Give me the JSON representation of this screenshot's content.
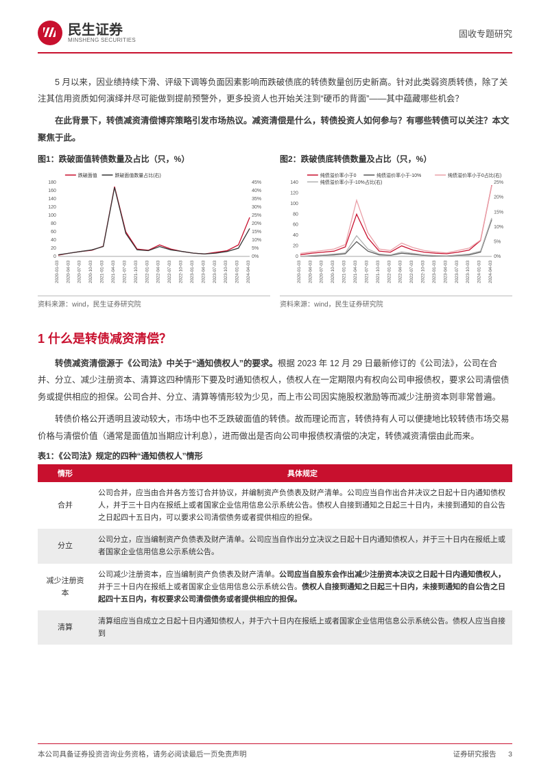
{
  "header": {
    "logo_cn": "民生证券",
    "logo_en": "MINSHENG SECURITIES",
    "doc_type": "固收专题研究"
  },
  "paras": {
    "p1": "5 月以来，因业绩持续下滑、评级下调等负面因素影响而跌破债底的转债数量创历史新高。针对此类弱资质转债，除了关注其信用资质如何演绎并尽可能做到提前预警外，更多投资人也开始关注到“硬币的背面”——其中蕴藏哪些机会？",
    "p2_bold": "在此背景下，转债减资清偿博弈策略引发市场热议。减资清偿是什么，转债投资人如何参与？有哪些转债可以关注？本文聚焦于此。"
  },
  "fig1": {
    "title": "图1：跌破面值转债数量及占比（只，%）",
    "source": "资料来源：wind，民生证券研究院",
    "legend": [
      "跌破面值",
      "跌破面值数量占比(右)"
    ],
    "legend_colors": [
      "#c8102e",
      "#333333"
    ],
    "x_labels": [
      "2020-01-03",
      "2020-04-03",
      "2020-07-03",
      "2020-10-03",
      "2021-01-03",
      "2021-04-03",
      "2021-07-03",
      "2021-10-03",
      "2022-01-03",
      "2022-04-03",
      "2022-07-03",
      "2022-10-03",
      "2023-01-03",
      "2023-04-03",
      "2023-07-03",
      "2023-10-03",
      "2024-01-03",
      "2024-04-03"
    ],
    "y_left": {
      "min": 0,
      "max": 180,
      "step": 20
    },
    "y_right": {
      "min": 0,
      "max": 45,
      "step": 5,
      "suffix": "%"
    },
    "series_left": {
      "color": "#c8102e",
      "width": 1.3,
      "values": [
        3,
        8,
        12,
        15,
        25,
        170,
        60,
        18,
        15,
        28,
        18,
        12,
        8,
        6,
        10,
        14,
        28,
        95
      ]
    },
    "series_right": {
      "color": "#333333",
      "width": 1.3,
      "values": [
        1,
        2,
        3,
        4,
        6,
        42,
        14,
        4,
        3.5,
        6,
        4,
        3,
        2,
        1.5,
        2,
        3,
        5,
        17
      ]
    },
    "bg": "#ffffff",
    "grid": "#dddddd",
    "tick_fontsize": 7
  },
  "fig2": {
    "title": "图2：跌破债底转债数量及占比（只，%）",
    "source": "资料来源：wind，民生证券研究院",
    "legend": [
      "纯债溢价率小于0",
      "纯债溢价率小于-10%",
      "纯债溢价率小于0占比(右)",
      "纯债溢价率小于-10%占比(右)"
    ],
    "legend_colors": [
      "#c8102e",
      "#555555",
      "#eaa0a8",
      "#b0b0b0"
    ],
    "x_labels": [
      "2020-01-03",
      "2020-04-03",
      "2020-07-03",
      "2020-10-03",
      "2021-01-03",
      "2021-04-03",
      "2021-07-03",
      "2021-10-03",
      "2022-01-03",
      "2022-04-03",
      "2022-07-03",
      "2022-10-03",
      "2023-01-03",
      "2023-04-03",
      "2023-07-03",
      "2023-10-03",
      "2024-01-03",
      "2024-04-03"
    ],
    "y_left": {
      "min": 0,
      "max": 140,
      "step": 20
    },
    "y_right": {
      "min": 0,
      "max": 25,
      "step": 5,
      "suffix": "%"
    },
    "series": [
      {
        "color": "#c8102e",
        "width": 1.3,
        "values": [
          3,
          6,
          8,
          10,
          18,
          80,
          35,
          10,
          8,
          20,
          12,
          8,
          6,
          5,
          8,
          12,
          30,
          135
        ]
      },
      {
        "color": "#555555",
        "width": 1.3,
        "values": [
          0,
          1,
          2,
          3,
          5,
          28,
          10,
          3,
          2,
          6,
          4,
          2,
          1,
          1,
          2,
          3,
          8,
          70
        ]
      },
      {
        "color": "#eaa0a8",
        "width": 1.3,
        "values": [
          1,
          1.5,
          2,
          2.5,
          4,
          19,
          8,
          2.5,
          2,
          4.5,
          3,
          2,
          1.5,
          1.2,
          2,
          2.8,
          5.5,
          24
        ]
      },
      {
        "color": "#b0b0b0",
        "width": 1.3,
        "values": [
          0,
          0.3,
          0.5,
          0.8,
          1.2,
          7,
          2.5,
          0.8,
          0.5,
          1.5,
          1,
          0.5,
          0.3,
          0.2,
          0.5,
          0.8,
          1.8,
          13
        ]
      }
    ],
    "bg": "#ffffff",
    "grid": "#dddddd",
    "tick_fontsize": 7
  },
  "section1": {
    "heading": "1 什么是转债减资清偿？",
    "p3a": "转债减资清偿源于《公司法》中关于“通知债权人”的要求。",
    "p3b": "根据 2023 年 12 月 29 日最新修订的《公司法》，公司在合并、分立、减少注册资本、清算这四种情形下要及时通知债权人，债权人在一定期限内有权向公司申报债权，要求公司清偿债务或提供相应的担保。公司合并、分立、清算等情形较为少见，而上市公司因实施股权激励等而减少注册资本则非常普遍。",
    "p4": "转债价格公开透明且波动较大，市场中也不乏跌破面值的转债。故而理论而言，转债持有人可以便捷地比较转债市场交易价格与清偿价值（通常是面值加当期应计利息），进而做出是否向公司申报债权清偿的决定，转债减资清偿由此而来。"
  },
  "table1": {
    "title": "表1：《公司法》规定的四种“通知债权人”情形",
    "headers": [
      "情形",
      "具体规定"
    ],
    "rows": [
      {
        "label": "合并",
        "text": "公司合并，应当由合并各方签订合并协议，并编制资产负债表及财产清单。公司应当自作出合并决议之日起十日内通知债权人，并于三十日内在报纸上或者国家企业信用信息公示系统公告。债权人自接到通知之日起三十日内，未接到通知的自公告之日起四十五日内，可以要求公司清偿债务或者提供相应的担保。"
      },
      {
        "label": "分立",
        "text": "公司分立，应当编制资产负债表及财产清单。公司应当自作出分立决议之日起十日内通知债权人，并于三十日内在报纸上或者国家企业信用信息公示系统公告。"
      },
      {
        "label": "减少注册资本",
        "text_a": "公司减少注册资本，应当编制资产负债表及财产清单。",
        "text_b": "公司应当自股东会作出减少注册资本决议之日起十日内通知债权人，",
        "text_c": "并于三十日内在报纸上或者国家企业信用信息公示系统公告。",
        "text_d": "债权人自接到通知之日起三十日内，未接到通知的自公告之日起四十五日内，有权要求公司清偿债务或者提供相应的担保。"
      },
      {
        "label": "清算",
        "text": "清算组应当自成立之日起十日内通知债权人，并于六十日内在报纸上或者国家企业信用信息公示系统公告。债权人应当自接到"
      }
    ]
  },
  "footer": {
    "left": "本公司具备证券投资咨询业务资格，请务必阅读最后一页免责声明",
    "right_a": "证券研究报告",
    "right_b": "3"
  }
}
